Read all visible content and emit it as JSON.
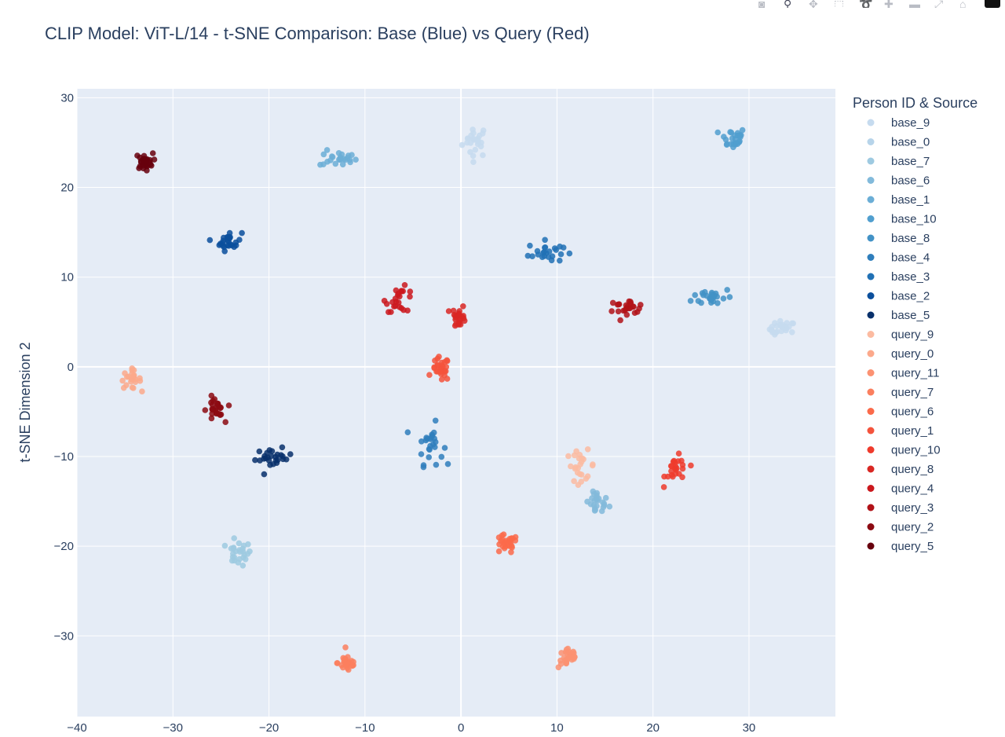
{
  "toolbar": {
    "buttons": [
      {
        "name": "camera-icon",
        "glyph": "◙",
        "active": false
      },
      {
        "name": "zoom-icon",
        "glyph": "⚲",
        "active": true
      },
      {
        "name": "pan-icon",
        "glyph": "✥",
        "active": false
      },
      {
        "name": "box-select-icon",
        "glyph": "⬚",
        "active": false
      },
      {
        "name": "lasso-select-icon",
        "glyph": "➰",
        "active": false
      },
      {
        "name": "zoom-in-icon",
        "glyph": "✚",
        "active": false
      },
      {
        "name": "zoom-out-icon",
        "glyph": "▬",
        "active": false
      },
      {
        "name": "autoscale-icon",
        "glyph": "⤢",
        "active": false
      },
      {
        "name": "home-icon",
        "glyph": "⌂",
        "active": false
      }
    ]
  },
  "chart_data": {
    "type": "scatter",
    "title": "CLIP Model: ViT-L/14 - t-SNE Comparison: Base (Blue) vs Query (Red)",
    "xlabel": "",
    "ylabel": "t-SNE Dimension 2",
    "xlim": [
      -40,
      39
    ],
    "ylim": [
      -39,
      31
    ],
    "xticks": [
      -40,
      -30,
      -20,
      -10,
      0,
      10,
      20,
      30
    ],
    "yticks": [
      -30,
      -20,
      -10,
      0,
      10,
      20,
      30
    ],
    "grid": true,
    "plot_bg": "#e5ecf6",
    "legend": {
      "title": "Person ID & Source",
      "position": "right"
    },
    "series": [
      {
        "name": "base_9",
        "color": "#c6dbef",
        "clusters": [
          {
            "cx": 1.5,
            "cy": 25.2,
            "sx": 0.9,
            "sy": 1.2,
            "n": 24
          },
          {
            "cx": 33.5,
            "cy": 4.2,
            "sx": 0.9,
            "sy": 0.6,
            "n": 24
          }
        ]
      },
      {
        "name": "base_0",
        "color": "#b7d4ea",
        "clusters": []
      },
      {
        "name": "base_7",
        "color": "#9ecae1",
        "clusters": [
          {
            "cx": -23.2,
            "cy": -20.8,
            "sx": 0.9,
            "sy": 0.9,
            "n": 26
          }
        ]
      },
      {
        "name": "base_6",
        "color": "#82badb",
        "clusters": [
          {
            "cx": 14.2,
            "cy": -15.2,
            "sx": 0.8,
            "sy": 0.9,
            "n": 24
          }
        ]
      },
      {
        "name": "base_1",
        "color": "#6baed6",
        "clusters": [
          {
            "cx": -12.8,
            "cy": 23.2,
            "sx": 1.3,
            "sy": 0.6,
            "n": 24
          }
        ]
      },
      {
        "name": "base_10",
        "color": "#519fcf",
        "clusters": [
          {
            "cx": 28.3,
            "cy": 25.5,
            "sx": 0.9,
            "sy": 0.8,
            "n": 26
          }
        ]
      },
      {
        "name": "base_8",
        "color": "#4292c6",
        "clusters": [
          {
            "cx": 26.2,
            "cy": 7.8,
            "sx": 1.4,
            "sy": 0.7,
            "n": 26
          }
        ]
      },
      {
        "name": "base_4",
        "color": "#2f7ebc",
        "clusters": [
          {
            "cx": -3.2,
            "cy": -8.6,
            "sx": 0.9,
            "sy": 1.5,
            "n": 26
          }
        ]
      },
      {
        "name": "base_3",
        "color": "#2171b5",
        "clusters": [
          {
            "cx": 8.8,
            "cy": 12.8,
            "sx": 1.2,
            "sy": 0.8,
            "n": 24
          }
        ]
      },
      {
        "name": "base_2",
        "color": "#0b4f9c",
        "clusters": [
          {
            "cx": -24.2,
            "cy": 14.0,
            "sx": 0.9,
            "sy": 0.7,
            "n": 26
          }
        ]
      },
      {
        "name": "base_5",
        "color": "#08306b",
        "clusters": [
          {
            "cx": -19.5,
            "cy": -10.2,
            "sx": 1.3,
            "sy": 0.7,
            "n": 26
          }
        ]
      },
      {
        "name": "query_9",
        "color": "#fcbba1",
        "clusters": [
          {
            "cx": 12.5,
            "cy": -11.0,
            "sx": 1.0,
            "sy": 1.1,
            "n": 24
          }
        ]
      },
      {
        "name": "query_0",
        "color": "#fca98b",
        "clusters": [
          {
            "cx": -34.4,
            "cy": -1.4,
            "sx": 0.7,
            "sy": 0.7,
            "n": 24
          }
        ]
      },
      {
        "name": "query_11",
        "color": "#fc9272",
        "clusters": [
          {
            "cx": 11.2,
            "cy": -32.4,
            "sx": 0.7,
            "sy": 0.8,
            "n": 26
          }
        ]
      },
      {
        "name": "query_7",
        "color": "#fb7f5e",
        "clusters": [
          {
            "cx": -11.8,
            "cy": -33.0,
            "sx": 0.7,
            "sy": 0.7,
            "n": 28
          }
        ]
      },
      {
        "name": "query_6",
        "color": "#fb6a4a",
        "clusters": [
          {
            "cx": 4.6,
            "cy": -19.8,
            "sx": 0.9,
            "sy": 0.7,
            "n": 26
          }
        ]
      },
      {
        "name": "query_1",
        "color": "#f4533c",
        "clusters": [
          {
            "cx": -2.1,
            "cy": -0.3,
            "sx": 0.6,
            "sy": 0.9,
            "n": 28
          }
        ]
      },
      {
        "name": "query_10",
        "color": "#ef3b2c",
        "clusters": [
          {
            "cx": 22.5,
            "cy": -11.5,
            "sx": 0.8,
            "sy": 1.0,
            "n": 24
          }
        ]
      },
      {
        "name": "query_8",
        "color": "#d92723",
        "clusters": [
          {
            "cx": -0.2,
            "cy": 5.6,
            "sx": 0.5,
            "sy": 0.8,
            "n": 24
          }
        ]
      },
      {
        "name": "query_4",
        "color": "#cb181d",
        "clusters": [
          {
            "cx": -6.3,
            "cy": 7.5,
            "sx": 1.0,
            "sy": 0.9,
            "n": 24
          }
        ]
      },
      {
        "name": "query_3",
        "color": "#b11218",
        "clusters": [
          {
            "cx": 17.2,
            "cy": 6.7,
            "sx": 1.4,
            "sy": 0.5,
            "n": 24
          }
        ]
      },
      {
        "name": "query_2",
        "color": "#8c0a12",
        "clusters": [
          {
            "cx": -25.6,
            "cy": -4.9,
            "sx": 0.6,
            "sy": 1.0,
            "n": 26
          }
        ]
      },
      {
        "name": "query_5",
        "color": "#67000d",
        "clusters": [
          {
            "cx": -33.0,
            "cy": 22.9,
            "sx": 0.6,
            "sy": 0.6,
            "n": 28
          }
        ]
      }
    ]
  }
}
